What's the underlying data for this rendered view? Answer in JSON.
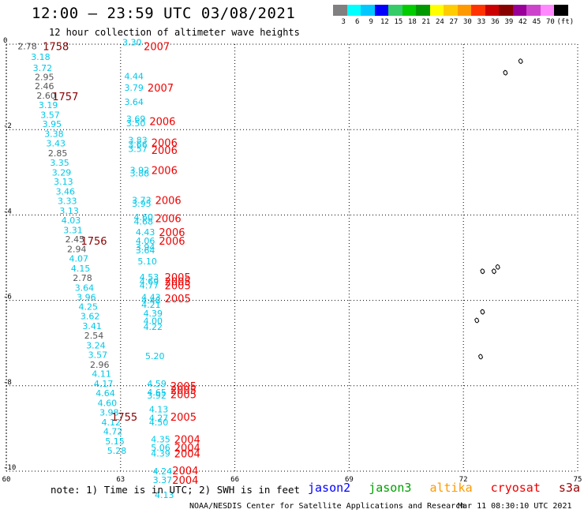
{
  "header": {
    "title": "12:00 – 23:59 UTC 03/08/2021",
    "subtitle": "12 hour collection of altimeter wave heights"
  },
  "footer": {
    "note": "note: 1) Time is in UTC; 2) SWH is in feet",
    "credit": "NOAA/NESDIS Center for Satellite Applications and Research",
    "timestamp": "Mar 11 08:30:10 UTC 2021"
  },
  "satellites": [
    {
      "name": "jason2",
      "color": "#0000ff"
    },
    {
      "name": "jason3",
      "color": "#00a000"
    },
    {
      "name": "altika",
      "color": "#ff9900"
    },
    {
      "name": "cryosat",
      "color": "#ee0000"
    },
    {
      "name": "s3a",
      "color": "#990000"
    }
  ],
  "colorbar": {
    "unit": "(ft)",
    "levels": [
      {
        "label": "3",
        "color": "#808080"
      },
      {
        "label": "6",
        "color": "#00ffff"
      },
      {
        "label": "9",
        "color": "#00c8ff"
      },
      {
        "label": "12",
        "color": "#0000ff"
      },
      {
        "label": "15",
        "color": "#33cc66"
      },
      {
        "label": "18",
        "color": "#00cc00"
      },
      {
        "label": "21",
        "color": "#009900"
      },
      {
        "label": "24",
        "color": "#ffff00"
      },
      {
        "label": "27",
        "color": "#ffcc00"
      },
      {
        "label": "30",
        "color": "#ff9900"
      },
      {
        "label": "33",
        "color": "#ff3300"
      },
      {
        "label": "36",
        "color": "#cc0000"
      },
      {
        "label": "39",
        "color": "#880000"
      },
      {
        "label": "42",
        "color": "#990099"
      },
      {
        "label": "45",
        "color": "#cc44cc"
      },
      {
        "label": "70",
        "color": "#ff88ff"
      },
      {
        "label": "",
        "color": "#000000"
      }
    ]
  },
  "chart_data": {
    "type": "scatter",
    "xlim": [
      60,
      75
    ],
    "ylim": [
      -10,
      0
    ],
    "x_ticks": [
      "60",
      "63",
      "66",
      "69",
      "72",
      "75"
    ],
    "y_ticks": [
      "0",
      "-2",
      "-4",
      "-6",
      "-8",
      "-10"
    ],
    "grid": true,
    "colors": {
      "gray": "#555555",
      "cyan": "#00c8e8",
      "time_red": "#ee0000",
      "time_dark": "#880000"
    },
    "wave_heights": [
      {
        "lon": 60.55,
        "lat": -0.05,
        "v": "2.78",
        "c": "gray"
      },
      {
        "lon": 60.9,
        "lat": -0.3,
        "v": "3.18",
        "c": "cyan"
      },
      {
        "lon": 60.95,
        "lat": -0.55,
        "v": "3.72",
        "c": "cyan"
      },
      {
        "lon": 61.0,
        "lat": -0.77,
        "v": "2.95",
        "c": "gray"
      },
      {
        "lon": 61.0,
        "lat": -0.98,
        "v": "2.46",
        "c": "gray"
      },
      {
        "lon": 61.05,
        "lat": -1.2,
        "v": "2.60",
        "c": "gray"
      },
      {
        "lon": 61.1,
        "lat": -1.42,
        "v": "3.19",
        "c": "cyan"
      },
      {
        "lon": 61.15,
        "lat": -1.65,
        "v": "3.57",
        "c": "cyan"
      },
      {
        "lon": 61.2,
        "lat": -1.87,
        "v": "3.95",
        "c": "cyan"
      },
      {
        "lon": 61.25,
        "lat": -2.1,
        "v": "3.38",
        "c": "cyan"
      },
      {
        "lon": 61.3,
        "lat": -2.32,
        "v": "3.43",
        "c": "cyan"
      },
      {
        "lon": 61.35,
        "lat": -2.55,
        "v": "2.85",
        "c": "gray"
      },
      {
        "lon": 61.4,
        "lat": -2.77,
        "v": "3.35",
        "c": "cyan"
      },
      {
        "lon": 61.45,
        "lat": -3.0,
        "v": "3.29",
        "c": "cyan"
      },
      {
        "lon": 61.5,
        "lat": -3.22,
        "v": "3.13",
        "c": "cyan"
      },
      {
        "lon": 61.55,
        "lat": -3.45,
        "v": "3.46",
        "c": "cyan"
      },
      {
        "lon": 61.6,
        "lat": -3.67,
        "v": "3.33",
        "c": "cyan"
      },
      {
        "lon": 61.65,
        "lat": -3.9,
        "v": "3.13",
        "c": "cyan"
      },
      {
        "lon": 61.7,
        "lat": -4.12,
        "v": "4.03",
        "c": "cyan"
      },
      {
        "lon": 61.75,
        "lat": -4.35,
        "v": "3.31",
        "c": "cyan"
      },
      {
        "lon": 61.8,
        "lat": -4.57,
        "v": "2.45",
        "c": "gray"
      },
      {
        "lon": 61.85,
        "lat": -4.8,
        "v": "2.94",
        "c": "gray"
      },
      {
        "lon": 61.9,
        "lat": -5.02,
        "v": "4.07",
        "c": "cyan"
      },
      {
        "lon": 61.95,
        "lat": -5.25,
        "v": "4.15",
        "c": "cyan"
      },
      {
        "lon": 62.0,
        "lat": -5.47,
        "v": "2.78",
        "c": "gray"
      },
      {
        "lon": 62.05,
        "lat": -5.7,
        "v": "3.64",
        "c": "cyan"
      },
      {
        "lon": 62.1,
        "lat": -5.92,
        "v": "3.96",
        "c": "cyan"
      },
      {
        "lon": 62.15,
        "lat": -6.15,
        "v": "4.25",
        "c": "cyan"
      },
      {
        "lon": 62.2,
        "lat": -6.37,
        "v": "3.62",
        "c": "cyan"
      },
      {
        "lon": 62.25,
        "lat": -6.6,
        "v": "3.41",
        "c": "cyan"
      },
      {
        "lon": 62.3,
        "lat": -6.82,
        "v": "2.54",
        "c": "gray"
      },
      {
        "lon": 62.35,
        "lat": -7.05,
        "v": "3.24",
        "c": "cyan"
      },
      {
        "lon": 62.4,
        "lat": -7.27,
        "v": "3.57",
        "c": "cyan"
      },
      {
        "lon": 62.45,
        "lat": -7.5,
        "v": "2.96",
        "c": "gray"
      },
      {
        "lon": 62.5,
        "lat": -7.72,
        "v": "4.11",
        "c": "cyan"
      },
      {
        "lon": 62.55,
        "lat": -7.95,
        "v": "4.17",
        "c": "cyan"
      },
      {
        "lon": 62.6,
        "lat": -8.17,
        "v": "4.64",
        "c": "cyan"
      },
      {
        "lon": 62.65,
        "lat": -8.4,
        "v": "4.60",
        "c": "cyan"
      },
      {
        "lon": 62.7,
        "lat": -8.62,
        "v": "3.98",
        "c": "cyan"
      },
      {
        "lon": 62.75,
        "lat": -8.85,
        "v": "4.12",
        "c": "cyan"
      },
      {
        "lon": 62.8,
        "lat": -9.07,
        "v": "4.72",
        "c": "cyan"
      },
      {
        "lon": 62.85,
        "lat": -9.3,
        "v": "5.15",
        "c": "cyan"
      },
      {
        "lon": 62.9,
        "lat": -9.52,
        "v": "5.28",
        "c": "cyan"
      },
      {
        "lon": 63.3,
        "lat": 0.05,
        "v": "3.30",
        "c": "cyan"
      },
      {
        "lon": 63.35,
        "lat": -0.75,
        "v": "4.44",
        "c": "cyan"
      },
      {
        "lon": 63.35,
        "lat": -1.02,
        "v": "3.79",
        "c": "cyan"
      },
      {
        "lon": 63.35,
        "lat": -1.35,
        "v": "3.64",
        "c": "cyan"
      },
      {
        "lon": 63.4,
        "lat": -1.75,
        "v": "3.69",
        "c": "cyan"
      },
      {
        "lon": 63.4,
        "lat": -1.85,
        "v": "3.50",
        "c": "cyan"
      },
      {
        "lon": 63.45,
        "lat": -2.25,
        "v": "3.83",
        "c": "cyan"
      },
      {
        "lon": 63.45,
        "lat": -2.35,
        "v": "3.66",
        "c": "cyan"
      },
      {
        "lon": 63.45,
        "lat": -2.45,
        "v": "3.57",
        "c": "cyan"
      },
      {
        "lon": 63.5,
        "lat": -2.95,
        "v": "3.92",
        "c": "cyan"
      },
      {
        "lon": 63.5,
        "lat": -3.02,
        "v": "3.88",
        "c": "cyan"
      },
      {
        "lon": 63.55,
        "lat": -3.65,
        "v": "3.73",
        "c": "cyan"
      },
      {
        "lon": 63.55,
        "lat": -3.73,
        "v": "3.95",
        "c": "cyan"
      },
      {
        "lon": 63.6,
        "lat": -4.05,
        "v": "4.60",
        "c": "cyan"
      },
      {
        "lon": 63.6,
        "lat": -4.15,
        "v": "4.68",
        "c": "cyan"
      },
      {
        "lon": 63.65,
        "lat": -4.4,
        "v": "4.43",
        "c": "cyan"
      },
      {
        "lon": 63.65,
        "lat": -4.6,
        "v": "4.06",
        "c": "cyan"
      },
      {
        "lon": 63.65,
        "lat": -4.75,
        "v": "3.94",
        "c": "cyan"
      },
      {
        "lon": 63.65,
        "lat": -4.82,
        "v": "3.64",
        "c": "cyan"
      },
      {
        "lon": 63.7,
        "lat": -5.08,
        "v": "5.10",
        "c": "cyan"
      },
      {
        "lon": 63.75,
        "lat": -5.45,
        "v": "4.53",
        "c": "cyan"
      },
      {
        "lon": 63.75,
        "lat": -5.55,
        "v": "4.69",
        "c": "cyan"
      },
      {
        "lon": 63.75,
        "lat": -5.65,
        "v": "4.77",
        "c": "cyan"
      },
      {
        "lon": 63.8,
        "lat": -5.92,
        "v": "4.43",
        "c": "cyan"
      },
      {
        "lon": 63.8,
        "lat": -6.0,
        "v": "4.48",
        "c": "cyan"
      },
      {
        "lon": 63.8,
        "lat": -6.1,
        "v": "4.21",
        "c": "cyan"
      },
      {
        "lon": 63.85,
        "lat": -6.3,
        "v": "4.39",
        "c": "cyan"
      },
      {
        "lon": 63.85,
        "lat": -6.48,
        "v": "4.00",
        "c": "cyan"
      },
      {
        "lon": 63.85,
        "lat": -6.62,
        "v": "4.22",
        "c": "cyan"
      },
      {
        "lon": 63.9,
        "lat": -7.3,
        "v": "5.20",
        "c": "cyan"
      },
      {
        "lon": 63.95,
        "lat": -7.95,
        "v": "4.59",
        "c": "cyan"
      },
      {
        "lon": 63.95,
        "lat": -8.15,
        "v": "4.65",
        "c": "cyan"
      },
      {
        "lon": 63.95,
        "lat": -8.23,
        "v": "3.92",
        "c": "cyan"
      },
      {
        "lon": 64.0,
        "lat": -8.55,
        "v": "4.13",
        "c": "cyan"
      },
      {
        "lon": 64.0,
        "lat": -8.75,
        "v": "4.27",
        "c": "cyan"
      },
      {
        "lon": 64.0,
        "lat": -8.85,
        "v": "4.50",
        "c": "cyan"
      },
      {
        "lon": 64.05,
        "lat": -9.25,
        "v": "4.35",
        "c": "cyan"
      },
      {
        "lon": 64.05,
        "lat": -9.45,
        "v": "5.06",
        "c": "cyan"
      },
      {
        "lon": 64.05,
        "lat": -9.58,
        "v": "4.39",
        "c": "cyan"
      },
      {
        "lon": 64.1,
        "lat": -10.0,
        "v": "4.24",
        "c": "cyan"
      },
      {
        "lon": 64.1,
        "lat": -10.2,
        "v": "3.37",
        "c": "cyan"
      },
      {
        "lon": 64.15,
        "lat": -10.55,
        "v": "4.13",
        "c": "cyan"
      }
    ],
    "time_labels": [
      {
        "lon": 61.3,
        "lat": -0.05,
        "t": "1758",
        "c": "time_dark"
      },
      {
        "lon": 61.55,
        "lat": -1.22,
        "t": "1757",
        "c": "time_dark"
      },
      {
        "lon": 62.3,
        "lat": -4.6,
        "t": "1756",
        "c": "time_dark"
      },
      {
        "lon": 63.1,
        "lat": -8.72,
        "t": "1755",
        "c": "time_dark"
      },
      {
        "lon": 63.95,
        "lat": -0.05,
        "t": "2007",
        "c": "time_red"
      },
      {
        "lon": 64.05,
        "lat": -1.02,
        "t": "2007",
        "c": "time_red"
      },
      {
        "lon": 64.1,
        "lat": -1.8,
        "t": "2006",
        "c": "time_red"
      },
      {
        "lon": 64.15,
        "lat": -2.3,
        "t": "2006",
        "c": "time_red"
      },
      {
        "lon": 64.15,
        "lat": -2.48,
        "t": "2006",
        "c": "time_red"
      },
      {
        "lon": 64.15,
        "lat": -2.95,
        "t": "2006",
        "c": "time_red"
      },
      {
        "lon": 64.25,
        "lat": -3.65,
        "t": "2006",
        "c": "time_red"
      },
      {
        "lon": 64.25,
        "lat": -4.08,
        "t": "2006",
        "c": "time_red"
      },
      {
        "lon": 64.35,
        "lat": -4.4,
        "t": "2006",
        "c": "time_red"
      },
      {
        "lon": 64.35,
        "lat": -4.6,
        "t": "2006",
        "c": "time_red"
      },
      {
        "lon": 64.5,
        "lat": -5.45,
        "t": "2005",
        "c": "time_red"
      },
      {
        "lon": 64.5,
        "lat": -5.55,
        "t": "2005",
        "c": "time_red"
      },
      {
        "lon": 64.5,
        "lat": -5.65,
        "t": "2005",
        "c": "time_red"
      },
      {
        "lon": 64.5,
        "lat": -5.95,
        "t": "2005",
        "c": "time_red"
      },
      {
        "lon": 64.65,
        "lat": -8.0,
        "t": "2005",
        "c": "time_red"
      },
      {
        "lon": 64.65,
        "lat": -8.1,
        "t": "2005",
        "c": "time_red"
      },
      {
        "lon": 64.65,
        "lat": -8.2,
        "t": "2005",
        "c": "time_red"
      },
      {
        "lon": 64.65,
        "lat": -8.72,
        "t": "2005",
        "c": "time_red"
      },
      {
        "lon": 64.75,
        "lat": -9.25,
        "t": "2004",
        "c": "time_red"
      },
      {
        "lon": 64.75,
        "lat": -9.45,
        "t": "2004",
        "c": "time_red"
      },
      {
        "lon": 64.75,
        "lat": -9.58,
        "t": "2004",
        "c": "time_red"
      },
      {
        "lon": 64.7,
        "lat": -9.98,
        "t": "2004",
        "c": "time_red"
      },
      {
        "lon": 64.7,
        "lat": -10.2,
        "t": "2004",
        "c": "time_red"
      }
    ],
    "islands": [
      {
        "lon": 73.45,
        "lat": -0.38
      },
      {
        "lon": 73.05,
        "lat": -0.65
      },
      {
        "lon": 72.45,
        "lat": -5.3
      },
      {
        "lon": 72.75,
        "lat": -5.3
      },
      {
        "lon": 72.85,
        "lat": -5.2
      },
      {
        "lon": 72.45,
        "lat": -6.25
      },
      {
        "lon": 72.3,
        "lat": -6.45
      },
      {
        "lon": 72.4,
        "lat": -7.3
      }
    ]
  }
}
